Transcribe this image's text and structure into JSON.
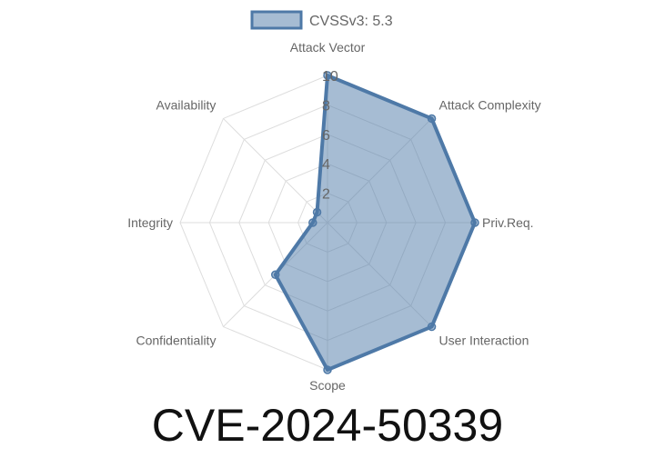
{
  "chart_data": {
    "type": "radar",
    "legend": {
      "label": "CVSSv3: 5.3",
      "placement": "top"
    },
    "axes": [
      "Attack Vector",
      "Attack Complexity",
      "Priv.Req.",
      "User Interaction",
      "Scope",
      "Confidentiality",
      "Integrity",
      "Availability"
    ],
    "series": [
      {
        "name": "CVSSv3: 5.3",
        "values": [
          10,
          10,
          10,
          10,
          10,
          5,
          1,
          1
        ]
      }
    ],
    "rlim": [
      0,
      10
    ],
    "ticks": [
      "2",
      "4",
      "6",
      "8",
      "10"
    ],
    "colors": {
      "fill": "rgba(78,121,167,0.5)",
      "stroke": "#4e79a7",
      "grid": "#dddddd"
    }
  },
  "title": "CVE-2024-50339"
}
